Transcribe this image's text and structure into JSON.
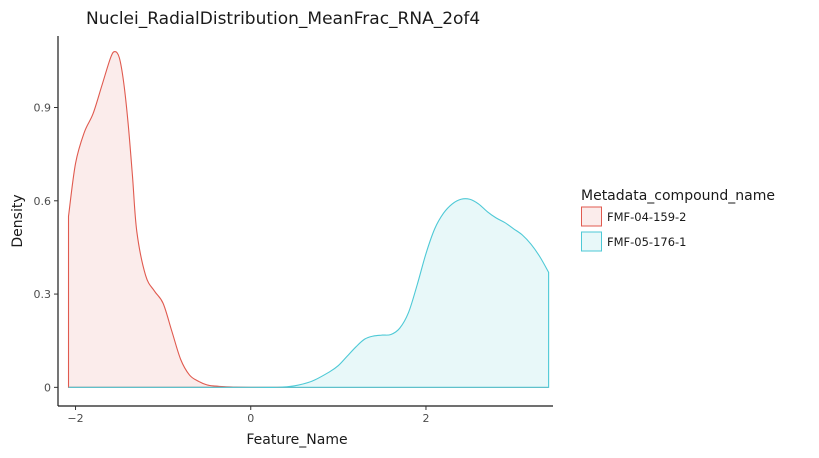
{
  "chart_data": {
    "type": "area",
    "title": "Nuclei_RadialDistribution_MeanFrac_RNA_2of4",
    "xlabel": "Feature_Name",
    "ylabel": "Density",
    "xlim": [
      -2.2,
      3.45
    ],
    "ylim": [
      -0.06,
      1.13
    ],
    "xticks": [
      -2,
      0,
      2
    ],
    "xtick_labels": [
      "−2",
      "0",
      "2"
    ],
    "yticks": [
      0,
      0.3,
      0.6,
      0.9
    ],
    "ytick_labels": [
      "0",
      "0.3",
      "0.6",
      "0.9"
    ],
    "grid": false,
    "legend": {
      "title": "Metadata_compound_name",
      "position": "right"
    },
    "series": [
      {
        "name": "FMF-04-159-2",
        "line_color": "#e05a4f",
        "fill_color": "#fbeceb",
        "x": [
          -2.08,
          -2.0,
          -1.9,
          -1.8,
          -1.7,
          -1.6,
          -1.55,
          -1.5,
          -1.45,
          -1.4,
          -1.35,
          -1.3,
          -1.2,
          -1.1,
          -1.0,
          -0.9,
          -0.8,
          -0.7,
          -0.6,
          -0.5,
          -0.4,
          -0.3,
          -0.2,
          0.0,
          0.5,
          1.0,
          1.5,
          2.0,
          2.5,
          3.0,
          3.4
        ],
        "values": [
          0.55,
          0.72,
          0.82,
          0.88,
          0.97,
          1.06,
          1.08,
          1.06,
          0.98,
          0.85,
          0.68,
          0.5,
          0.36,
          0.31,
          0.27,
          0.18,
          0.09,
          0.04,
          0.02,
          0.008,
          0.004,
          0.002,
          0.001,
          0.0,
          0.0,
          0.0,
          0.0,
          0.0,
          0.0,
          0.0,
          0.0
        ]
      },
      {
        "name": "FMF-05-176-1",
        "line_color": "#4ec9d6",
        "fill_color": "#e8f8f9",
        "x": [
          -2.08,
          -1.0,
          0.0,
          0.3,
          0.5,
          0.7,
          0.9,
          1.0,
          1.1,
          1.2,
          1.3,
          1.4,
          1.5,
          1.6,
          1.7,
          1.8,
          1.9,
          2.0,
          2.1,
          2.2,
          2.3,
          2.4,
          2.5,
          2.6,
          2.7,
          2.8,
          2.9,
          3.0,
          3.1,
          3.2,
          3.3,
          3.4
        ],
        "values": [
          0.0,
          0.0,
          0.0,
          0.0,
          0.005,
          0.02,
          0.05,
          0.07,
          0.1,
          0.13,
          0.155,
          0.165,
          0.168,
          0.17,
          0.19,
          0.24,
          0.33,
          0.43,
          0.51,
          0.56,
          0.59,
          0.605,
          0.605,
          0.59,
          0.565,
          0.545,
          0.53,
          0.51,
          0.49,
          0.46,
          0.42,
          0.37
        ]
      }
    ]
  }
}
